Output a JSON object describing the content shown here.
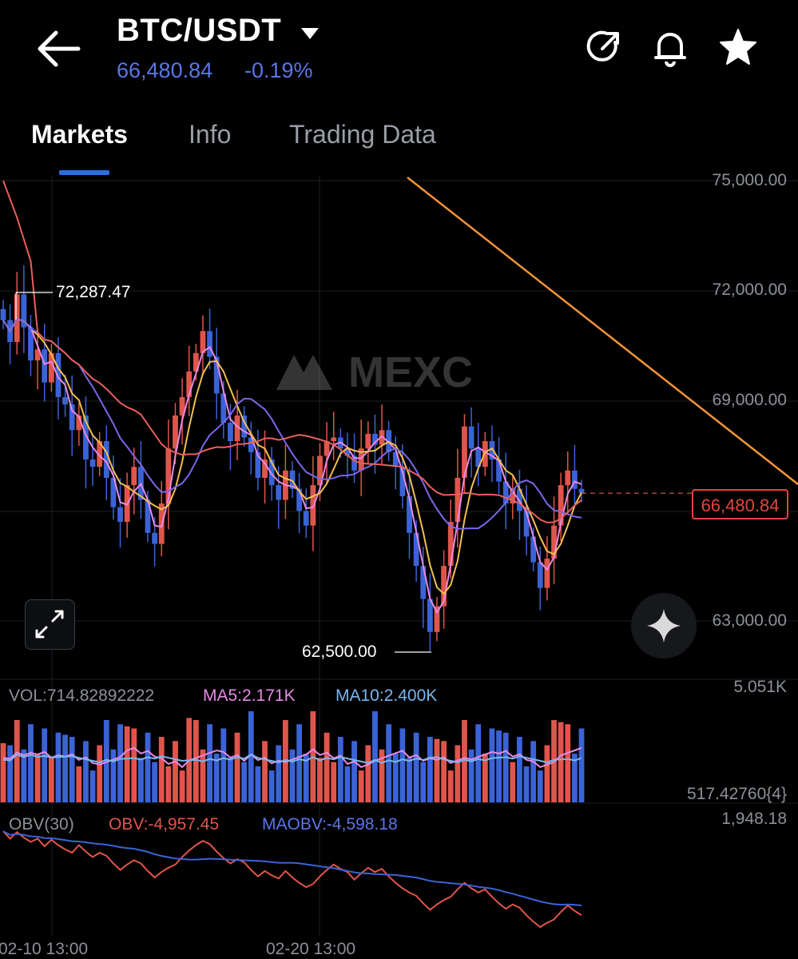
{
  "header": {
    "pair": "BTC/USDT",
    "last_price": "66,480.84",
    "change": "-0.19%",
    "icons": [
      "back-arrow-icon",
      "dropdown-caret-icon",
      "share-refresh-icon",
      "bell-icon",
      "star-icon"
    ]
  },
  "tabs": [
    {
      "label": "Markets",
      "active": true
    },
    {
      "label": "Info",
      "active": false
    },
    {
      "label": "Trading Data",
      "active": false
    }
  ],
  "watermark": "MEXC",
  "price_axis": [
    "75,000.00",
    "72,000.00",
    "69,000.00",
    "63,000.00"
  ],
  "current_price_tag": "66,480.84",
  "high_label": "72,287.47",
  "low_label": "62,500.00",
  "volume": {
    "vol_label": "VOL:714.82892222",
    "ma5_label": "MA5:2.171K",
    "ma10_label": "MA10:2.400K",
    "max_label": "5.051K",
    "min_label": "517.42760{4}"
  },
  "obv": {
    "title": "OBV(30)",
    "obv_label": "OBV:-4,957.45",
    "maobv_label": "MAOBV:-4,598.18",
    "max_label": "1,948.18"
  },
  "time_axis": [
    "02-10 13:00",
    "02-20 13:00"
  ],
  "colors": {
    "up": "#e0554b",
    "down": "#3b63d6",
    "accent": "#2a6fe0",
    "price_blue": "#5b76e8",
    "trendline": "#f0943a",
    "ma_pink": "#e889e6",
    "ma_yellow": "#f2c04e",
    "ma_purple": "#7a67e8",
    "ma_red": "#e8605c"
  },
  "chart_data": {
    "type": "candlestick",
    "title": "",
    "ylim": [
      61500,
      75000
    ],
    "candles_close": [
      71200,
      70600,
      71900,
      71000,
      70100,
      70400,
      69500,
      70300,
      69100,
      68900,
      68200,
      68600,
      67400,
      67200,
      67900,
      66900,
      66100,
      65700,
      66700,
      67200,
      66300,
      65400,
      65100,
      66200,
      67700,
      68600,
      69100,
      69800,
      70300,
      70900,
      70200,
      69200,
      68400,
      67900,
      68600,
      68000,
      67600,
      66900,
      67400,
      66700,
      66300,
      67100,
      66600,
      66000,
      65600,
      66700,
      67500,
      67900,
      68000,
      67700,
      67500,
      67100,
      67700,
      68100,
      67800,
      68200,
      67600,
      67200,
      66400,
      65400,
      64500,
      63600,
      62700,
      63400,
      64500,
      65700,
      66900,
      68300,
      67700,
      67200,
      67900,
      67400,
      66800,
      66200,
      66600,
      66000,
      65300,
      64600,
      63900,
      64700,
      65600,
      66700,
      67100,
      66600,
      66480
    ]
  }
}
